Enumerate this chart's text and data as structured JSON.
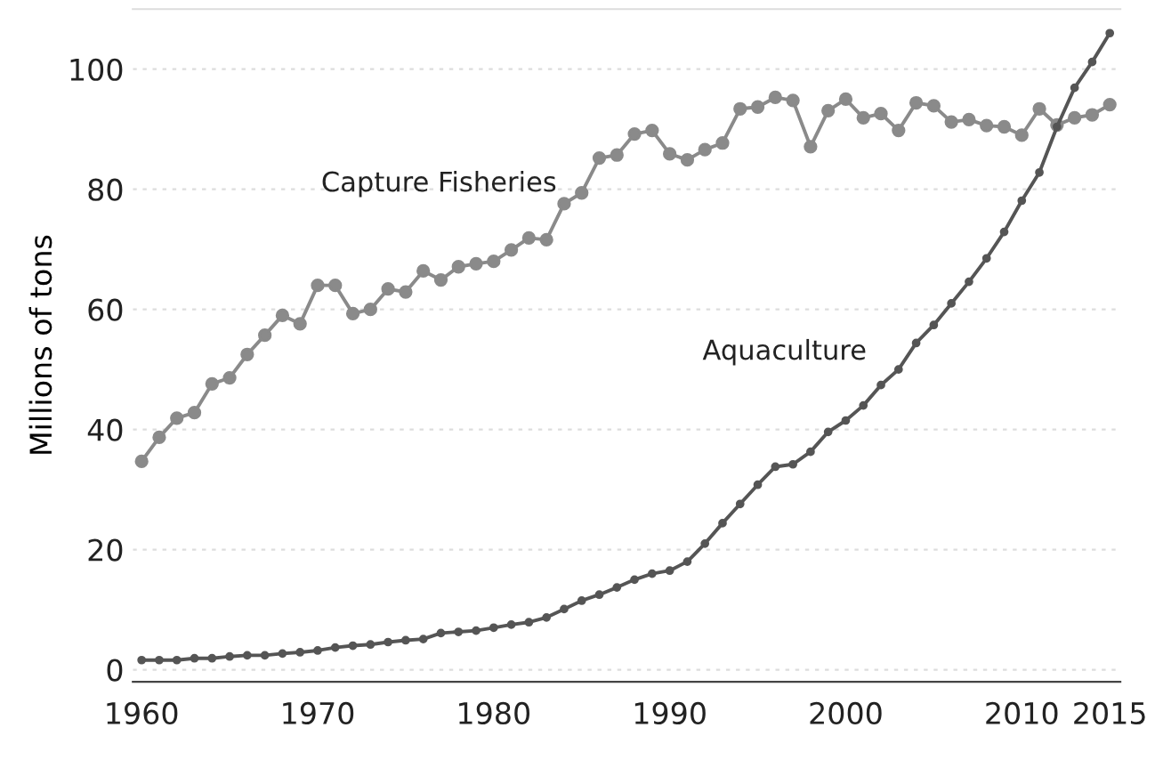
{
  "chart_data": {
    "type": "line",
    "ylabel": "Millions of tons",
    "x": [
      1960,
      1961,
      1962,
      1963,
      1964,
      1965,
      1966,
      1967,
      1968,
      1969,
      1970,
      1971,
      1972,
      1973,
      1974,
      1975,
      1976,
      1977,
      1978,
      1979,
      1980,
      1981,
      1982,
      1983,
      1984,
      1985,
      1986,
      1987,
      1988,
      1989,
      1990,
      1991,
      1992,
      1993,
      1994,
      1995,
      1996,
      1997,
      1998,
      1999,
      2000,
      2001,
      2002,
      2003,
      2004,
      2005,
      2006,
      2007,
      2008,
      2009,
      2010,
      2011,
      2012,
      2013,
      2014,
      2015
    ],
    "series": [
      {
        "name": "Capture Fisheries",
        "color": "#8a8a8a",
        "values": [
          34.7,
          38.7,
          41.9,
          42.8,
          47.6,
          48.6,
          52.5,
          55.7,
          59,
          57.6,
          64,
          64,
          59.3,
          60,
          63.4,
          62.9,
          66.4,
          64.9,
          67.1,
          67.6,
          68,
          69.9,
          71.9,
          71.6,
          77.6,
          79.4,
          85.2,
          85.7,
          89.2,
          89.8,
          85.9,
          84.9,
          86.6,
          87.7,
          93.4,
          93.7,
          95.3,
          94.8,
          87.1,
          93.1,
          95,
          91.9,
          92.6,
          89.8,
          94.4,
          93.9,
          91.2,
          91.6,
          90.6,
          90.4,
          89,
          93.4,
          90.7,
          91.9,
          92.4,
          94.1
        ]
      },
      {
        "name": "Aquaculture",
        "color": "#555555",
        "values": [
          1.6,
          1.6,
          1.6,
          1.9,
          1.9,
          2.2,
          2.4,
          2.4,
          2.7,
          2.9,
          3.2,
          3.7,
          4,
          4.2,
          4.6,
          4.9,
          5.1,
          6.1,
          6.3,
          6.5,
          7,
          7.5,
          7.9,
          8.7,
          10.1,
          11.5,
          12.5,
          13.7,
          15,
          16,
          16.5,
          18,
          21,
          24.4,
          27.6,
          30.8,
          33.8,
          34.2,
          36.3,
          39.6,
          41.5,
          44,
          47.4,
          50,
          54.4,
          57.4,
          61,
          64.6,
          68.5,
          72.9,
          78.1,
          82.8,
          90.4,
          96.9,
          101.2,
          106
        ]
      }
    ],
    "xlim": [
      1959.5,
      2015.6
    ],
    "ylim": [
      -2,
      110
    ],
    "xticks": [
      1960,
      1970,
      1980,
      1990,
      2000,
      2010,
      2015
    ],
    "yticks": [
      0,
      20,
      40,
      60,
      80,
      100
    ],
    "grid": "y",
    "marker": "circle",
    "line_style": "solid",
    "legend": false
  }
}
